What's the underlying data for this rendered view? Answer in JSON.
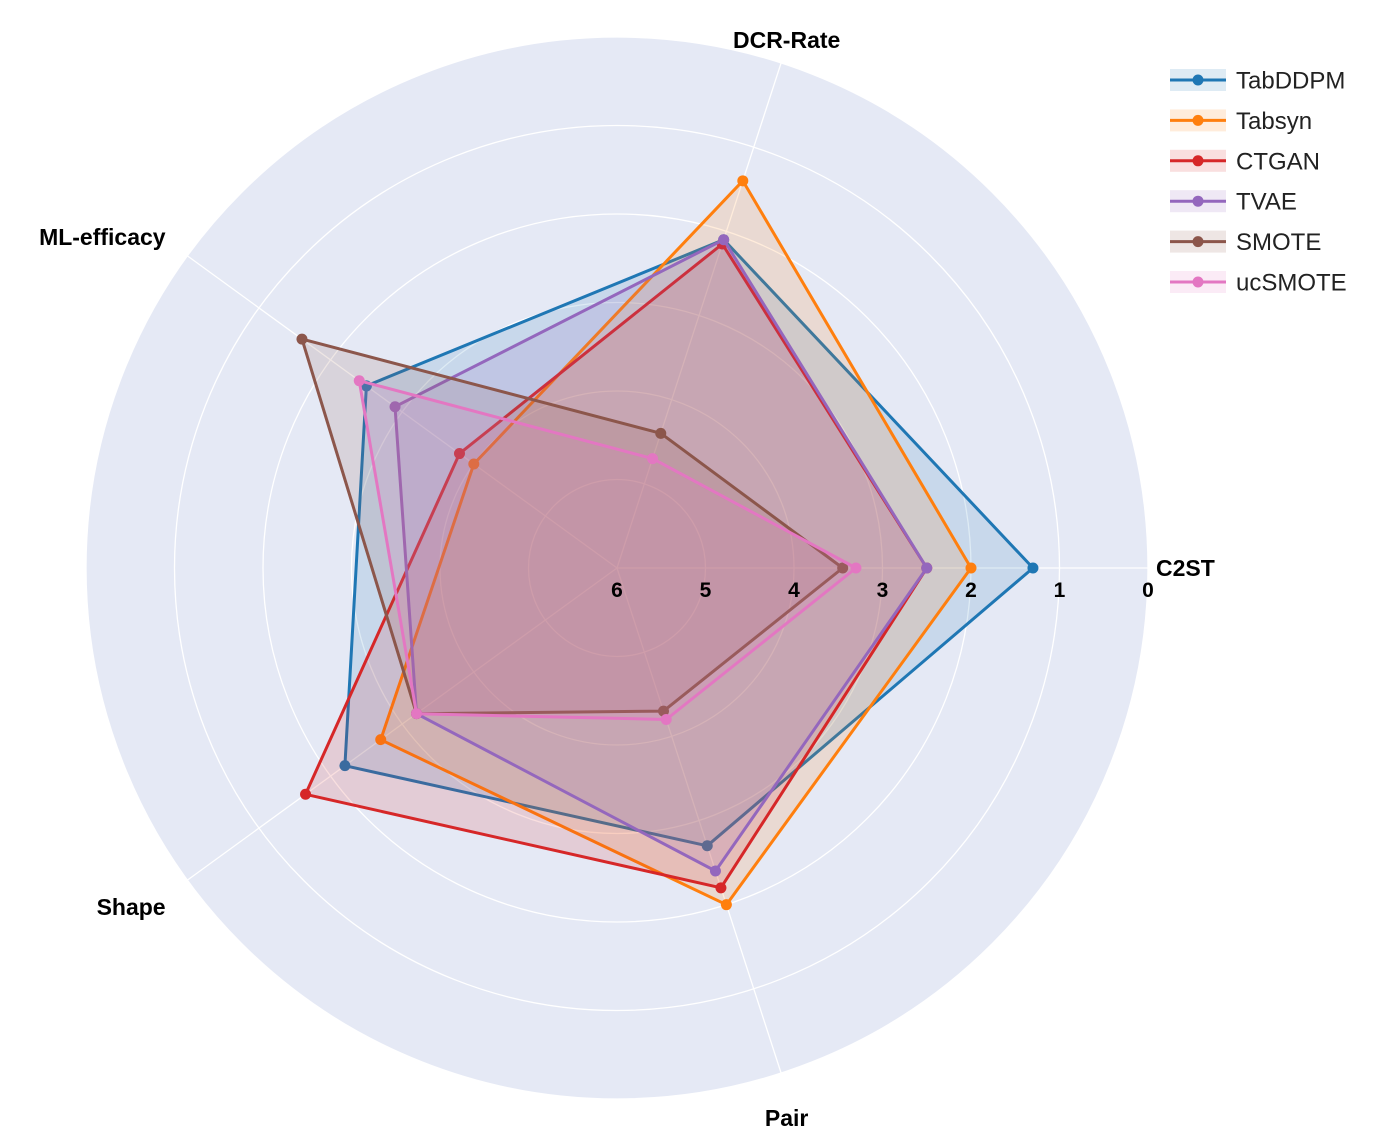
{
  "chart_data": {
    "type": "radar",
    "axes": [
      "C2ST",
      "DCR-Rate",
      "ML-efficacy",
      "Shape",
      "Pair"
    ],
    "radial_ticks": [
      "6",
      "5",
      "4",
      "3",
      "2",
      "1",
      "0"
    ],
    "rmax": 6,
    "rmin": 0,
    "radial_direction": "inverted (0 at outer edge, 6 at center)",
    "legend_position": "top-right",
    "series": [
      {
        "name": "TabDDPM",
        "color": "#1f77b4",
        "values": [
          1.3,
          2.1,
          2.5,
          2.2,
          2.7
        ]
      },
      {
        "name": "Tabsyn",
        "color": "#ff7f0e",
        "values": [
          2.0,
          1.4,
          4.0,
          2.7,
          2.0
        ]
      },
      {
        "name": "CTGAN",
        "color": "#d62728",
        "values": [
          2.5,
          2.15,
          3.8,
          1.65,
          2.2
        ]
      },
      {
        "name": "TVAE",
        "color": "#9467bd",
        "values": [
          2.5,
          2.1,
          2.9,
          3.2,
          2.4
        ]
      },
      {
        "name": "SMOTE",
        "color": "#8c564b",
        "values": [
          3.45,
          4.4,
          1.6,
          3.2,
          4.3
        ]
      },
      {
        "name": "ucSMOTE",
        "color": "#e377c2",
        "values": [
          3.3,
          4.7,
          2.4,
          3.2,
          4.2
        ]
      }
    ]
  }
}
